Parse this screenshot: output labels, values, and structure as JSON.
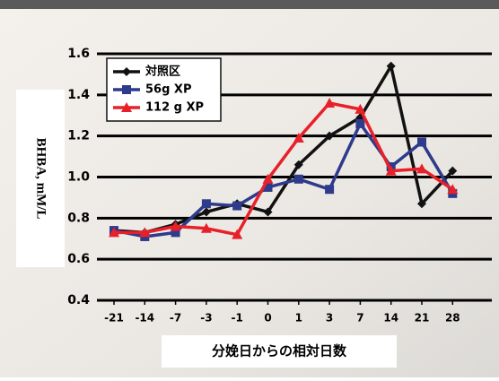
{
  "chart_data": {
    "type": "line",
    "y_label": "BHBA, mM/L",
    "x_label": "分娩日からの相対日数",
    "categories": [
      "-21",
      "-14",
      "-7",
      "-3",
      "-1",
      "0",
      "1",
      "3",
      "7",
      "14",
      "21",
      "28"
    ],
    "series": [
      {
        "name": "対照区",
        "color": "#111111",
        "marker": "diamond",
        "values": [
          0.74,
          0.73,
          0.77,
          0.83,
          0.87,
          0.83,
          1.06,
          1.2,
          1.29,
          1.54,
          0.87,
          1.03
        ]
      },
      {
        "name": "56g XP",
        "color": "#2e3a8c",
        "marker": "square",
        "values": [
          0.74,
          0.71,
          0.73,
          0.87,
          0.86,
          0.95,
          0.99,
          0.94,
          1.26,
          1.05,
          1.17,
          0.92
        ]
      },
      {
        "name": "112 g XP",
        "color": "#e8202a",
        "marker": "triangle",
        "values": [
          0.73,
          0.73,
          0.76,
          0.75,
          0.72,
          0.99,
          1.19,
          1.36,
          1.33,
          1.03,
          1.04,
          0.94
        ]
      }
    ],
    "ylim": [
      0.4,
      1.6
    ],
    "yticks": [
      0.4,
      0.6,
      0.8,
      {
        "value": 1.0,
        "label": "1.0"
      },
      1.2,
      1.4,
      1.6
    ],
    "grid": true
  }
}
